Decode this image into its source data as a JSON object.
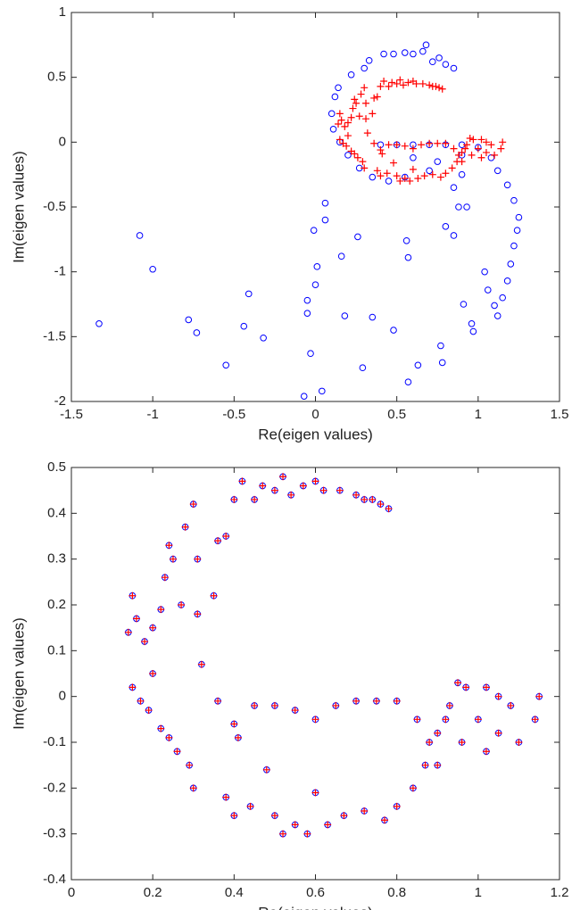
{
  "chart_data": [
    {
      "type": "scatter",
      "xlabel": "Re(eigen values)",
      "ylabel": "Im(eigen values)",
      "xlim": [
        -1.5,
        1.5
      ],
      "ylim": [
        -2,
        1
      ],
      "xticks": [
        -1.5,
        -1,
        -0.5,
        0,
        0.5,
        1,
        1.5
      ],
      "yticks": [
        -2,
        -1.5,
        -1,
        -0.5,
        0,
        0.5,
        1
      ],
      "series": [
        {
          "color": "#0000ff",
          "marker": "circle",
          "x": [
            -1.33,
            -1.08,
            -1.0,
            -0.78,
            -0.73,
            -0.55,
            -0.44,
            -0.41,
            -0.32,
            -0.07,
            -0.05,
            -0.05,
            -0.03,
            -0.01,
            0.0,
            0.01,
            0.04,
            0.06,
            0.06,
            0.16,
            0.18,
            0.26,
            0.29,
            0.35,
            0.48,
            0.56,
            0.57,
            0.57,
            0.63,
            0.77,
            0.78,
            0.8,
            0.85,
            0.91,
            0.96,
            0.97,
            1.04,
            1.06,
            1.1,
            1.12,
            1.15,
            1.18,
            1.2,
            1.22,
            1.24,
            1.25,
            1.22,
            1.18,
            1.12,
            1.08,
            1.0,
            0.93,
            0.88,
            0.85,
            0.9,
            0.68,
            0.66,
            0.6,
            0.55,
            0.48,
            0.42,
            0.33,
            0.3,
            0.22,
            0.14,
            0.12,
            0.1,
            0.11,
            0.15,
            0.2,
            0.27,
            0.35,
            0.45,
            0.55,
            0.7,
            0.8,
            0.85,
            0.76,
            0.72,
            0.4,
            0.5,
            0.6,
            0.7,
            0.8,
            0.9,
            0.6,
            0.75,
            0.9
          ],
          "values": [
            -1.4,
            -0.72,
            -0.98,
            -1.37,
            -1.47,
            -1.72,
            -1.42,
            -1.17,
            -1.51,
            -1.96,
            -1.22,
            -1.32,
            -1.63,
            -0.68,
            -1.1,
            -0.96,
            -1.92,
            -0.47,
            -0.6,
            -0.88,
            -1.34,
            -0.73,
            -1.74,
            -1.35,
            -1.45,
            -0.76,
            -0.89,
            -1.85,
            -1.72,
            -1.57,
            -1.7,
            -0.65,
            -0.72,
            -1.25,
            -1.4,
            -1.46,
            -1.0,
            -1.14,
            -1.26,
            -1.34,
            -1.2,
            -1.07,
            -0.94,
            -0.8,
            -0.68,
            -0.58,
            -0.45,
            -0.33,
            -0.22,
            -0.12,
            -0.04,
            -0.5,
            -0.5,
            -0.35,
            -0.25,
            0.75,
            0.7,
            0.68,
            0.69,
            0.68,
            0.68,
            0.63,
            0.57,
            0.52,
            0.42,
            0.35,
            0.22,
            0.1,
            0.0,
            -0.1,
            -0.2,
            -0.27,
            -0.3,
            -0.27,
            -0.22,
            0.6,
            0.57,
            0.65,
            0.62,
            -0.02,
            -0.02,
            -0.02,
            -0.02,
            -0.02,
            -0.02,
            -0.12,
            -0.15,
            -0.1
          ]
        },
        {
          "color": "#ff0000",
          "marker": "plus",
          "x": [
            0.14,
            0.15,
            0.15,
            0.16,
            0.17,
            0.18,
            0.19,
            0.2,
            0.2,
            0.22,
            0.22,
            0.23,
            0.24,
            0.24,
            0.25,
            0.26,
            0.27,
            0.28,
            0.29,
            0.3,
            0.3,
            0.31,
            0.31,
            0.32,
            0.35,
            0.36,
            0.36,
            0.38,
            0.38,
            0.4,
            0.4,
            0.42,
            0.44,
            0.45,
            0.47,
            0.48,
            0.5,
            0.5,
            0.52,
            0.52,
            0.54,
            0.55,
            0.57,
            0.58,
            0.6,
            0.6,
            0.62,
            0.63,
            0.66,
            0.67,
            0.7,
            0.72,
            0.74,
            0.76,
            0.78,
            0.72,
            0.77,
            0.8,
            0.84,
            0.87,
            0.9,
            0.93,
            0.95,
            0.97,
            1.0,
            1.02,
            1.05,
            1.08,
            1.1,
            1.14,
            1.15,
            0.4,
            0.41,
            0.45,
            0.5,
            0.55,
            0.6,
            0.65,
            0.7,
            0.75,
            0.8,
            0.85,
            0.88,
            0.9,
            0.92,
            0.96,
            1.02,
            1.05
          ],
          "values": [
            0.14,
            0.22,
            0.02,
            0.17,
            -0.01,
            0.12,
            -0.03,
            0.15,
            0.05,
            0.19,
            -0.07,
            0.26,
            0.33,
            -0.09,
            0.3,
            -0.12,
            0.2,
            0.37,
            -0.15,
            0.42,
            -0.2,
            0.3,
            0.18,
            0.07,
            0.22,
            0.34,
            -0.01,
            0.35,
            -0.22,
            0.43,
            -0.26,
            0.47,
            -0.24,
            0.43,
            0.46,
            -0.16,
            0.45,
            -0.26,
            0.48,
            -0.3,
            0.44,
            -0.28,
            0.46,
            -0.3,
            0.47,
            -0.21,
            0.45,
            -0.28,
            0.45,
            -0.26,
            0.44,
            0.43,
            0.43,
            0.42,
            0.41,
            -0.25,
            -0.27,
            -0.24,
            -0.2,
            -0.15,
            -0.08,
            -0.02,
            0.03,
            0.02,
            -0.05,
            -0.12,
            -0.08,
            -0.02,
            -0.1,
            -0.05,
            0.0,
            -0.06,
            -0.09,
            -0.02,
            -0.02,
            -0.03,
            -0.05,
            -0.02,
            -0.01,
            -0.01,
            -0.01,
            -0.05,
            -0.1,
            -0.15,
            -0.05,
            -0.1,
            0.02,
            0.0
          ]
        }
      ]
    },
    {
      "type": "scatter",
      "xlabel": "Re(eigen values)",
      "ylabel": "Im(eigen values)",
      "xlim": [
        0,
        1.2
      ],
      "ylim": [
        -0.4,
        0.5
      ],
      "xticks": [
        0,
        0.2,
        0.4,
        0.6,
        0.8,
        1,
        1.2
      ],
      "yticks": [
        -0.4,
        -0.3,
        -0.2,
        -0.1,
        0,
        0.1,
        0.2,
        0.3,
        0.4,
        0.5
      ],
      "series": [
        {
          "color": "#0000ff",
          "marker": "circle",
          "x": [
            0.14,
            0.15,
            0.15,
            0.16,
            0.17,
            0.18,
            0.19,
            0.2,
            0.2,
            0.22,
            0.22,
            0.23,
            0.24,
            0.24,
            0.25,
            0.26,
            0.27,
            0.28,
            0.29,
            0.3,
            0.3,
            0.31,
            0.31,
            0.32,
            0.35,
            0.36,
            0.36,
            0.38,
            0.38,
            0.4,
            0.4,
            0.42,
            0.44,
            0.45,
            0.47,
            0.48,
            0.5,
            0.5,
            0.52,
            0.52,
            0.54,
            0.55,
            0.57,
            0.58,
            0.6,
            0.6,
            0.62,
            0.63,
            0.66,
            0.67,
            0.7,
            0.72,
            0.74,
            0.76,
            0.78,
            0.72,
            0.77,
            0.8,
            0.84,
            0.87,
            0.9,
            0.93,
            0.95,
            0.97,
            1.0,
            1.02,
            1.05,
            1.08,
            1.1,
            1.14,
            1.15,
            0.4,
            0.41,
            0.45,
            0.5,
            0.55,
            0.6,
            0.65,
            0.7,
            0.75,
            0.8,
            0.85,
            0.88,
            0.9,
            0.92,
            0.96,
            1.02,
            1.05
          ],
          "values": [
            0.14,
            0.22,
            0.02,
            0.17,
            -0.01,
            0.12,
            -0.03,
            0.15,
            0.05,
            0.19,
            -0.07,
            0.26,
            0.33,
            -0.09,
            0.3,
            -0.12,
            0.2,
            0.37,
            -0.15,
            0.42,
            -0.2,
            0.3,
            0.18,
            0.07,
            0.22,
            0.34,
            -0.01,
            0.35,
            -0.22,
            0.43,
            -0.26,
            0.47,
            -0.24,
            0.43,
            0.46,
            -0.16,
            0.45,
            -0.26,
            0.48,
            -0.3,
            0.44,
            -0.28,
            0.46,
            -0.3,
            0.47,
            -0.21,
            0.45,
            -0.28,
            0.45,
            -0.26,
            0.44,
            0.43,
            0.43,
            0.42,
            0.41,
            -0.25,
            -0.27,
            -0.24,
            -0.2,
            -0.15,
            -0.08,
            -0.02,
            0.03,
            0.02,
            -0.05,
            -0.12,
            -0.08,
            -0.02,
            -0.1,
            -0.05,
            0.0,
            -0.06,
            -0.09,
            -0.02,
            -0.02,
            -0.03,
            -0.05,
            -0.02,
            -0.01,
            -0.01,
            -0.01,
            -0.05,
            -0.1,
            -0.15,
            -0.05,
            -0.1,
            0.02,
            0.0
          ]
        },
        {
          "color": "#ff0000",
          "marker": "plus",
          "x": [
            0.14,
            0.15,
            0.15,
            0.16,
            0.17,
            0.18,
            0.19,
            0.2,
            0.2,
            0.22,
            0.22,
            0.23,
            0.24,
            0.24,
            0.25,
            0.26,
            0.27,
            0.28,
            0.29,
            0.3,
            0.3,
            0.31,
            0.31,
            0.32,
            0.35,
            0.36,
            0.36,
            0.38,
            0.38,
            0.4,
            0.4,
            0.42,
            0.44,
            0.45,
            0.47,
            0.48,
            0.5,
            0.5,
            0.52,
            0.52,
            0.54,
            0.55,
            0.57,
            0.58,
            0.6,
            0.6,
            0.62,
            0.63,
            0.66,
            0.67,
            0.7,
            0.72,
            0.74,
            0.76,
            0.78,
            0.72,
            0.77,
            0.8,
            0.84,
            0.87,
            0.9,
            0.93,
            0.95,
            0.97,
            1.0,
            1.02,
            1.05,
            1.08,
            1.1,
            1.14,
            1.15,
            0.4,
            0.41,
            0.45,
            0.5,
            0.55,
            0.6,
            0.65,
            0.7,
            0.75,
            0.8,
            0.85,
            0.88,
            0.9,
            0.92,
            0.96,
            1.02,
            1.05
          ],
          "values": [
            0.14,
            0.22,
            0.02,
            0.17,
            -0.01,
            0.12,
            -0.03,
            0.15,
            0.05,
            0.19,
            -0.07,
            0.26,
            0.33,
            -0.09,
            0.3,
            -0.12,
            0.2,
            0.37,
            -0.15,
            0.42,
            -0.2,
            0.3,
            0.18,
            0.07,
            0.22,
            0.34,
            -0.01,
            0.35,
            -0.22,
            0.43,
            -0.26,
            0.47,
            -0.24,
            0.43,
            0.46,
            -0.16,
            0.45,
            -0.26,
            0.48,
            -0.3,
            0.44,
            -0.28,
            0.46,
            -0.3,
            0.47,
            -0.21,
            0.45,
            -0.28,
            0.45,
            -0.26,
            0.44,
            0.43,
            0.43,
            0.42,
            0.41,
            -0.25,
            -0.27,
            -0.24,
            -0.2,
            -0.15,
            -0.08,
            -0.02,
            0.03,
            0.02,
            -0.05,
            -0.12,
            -0.08,
            -0.02,
            -0.1,
            -0.05,
            0.0,
            -0.06,
            -0.09,
            -0.02,
            -0.02,
            -0.03,
            -0.05,
            -0.02,
            -0.01,
            -0.01,
            -0.01,
            -0.05,
            -0.1,
            -0.15,
            -0.05,
            -0.1,
            0.02,
            0.0
          ]
        }
      ]
    }
  ]
}
